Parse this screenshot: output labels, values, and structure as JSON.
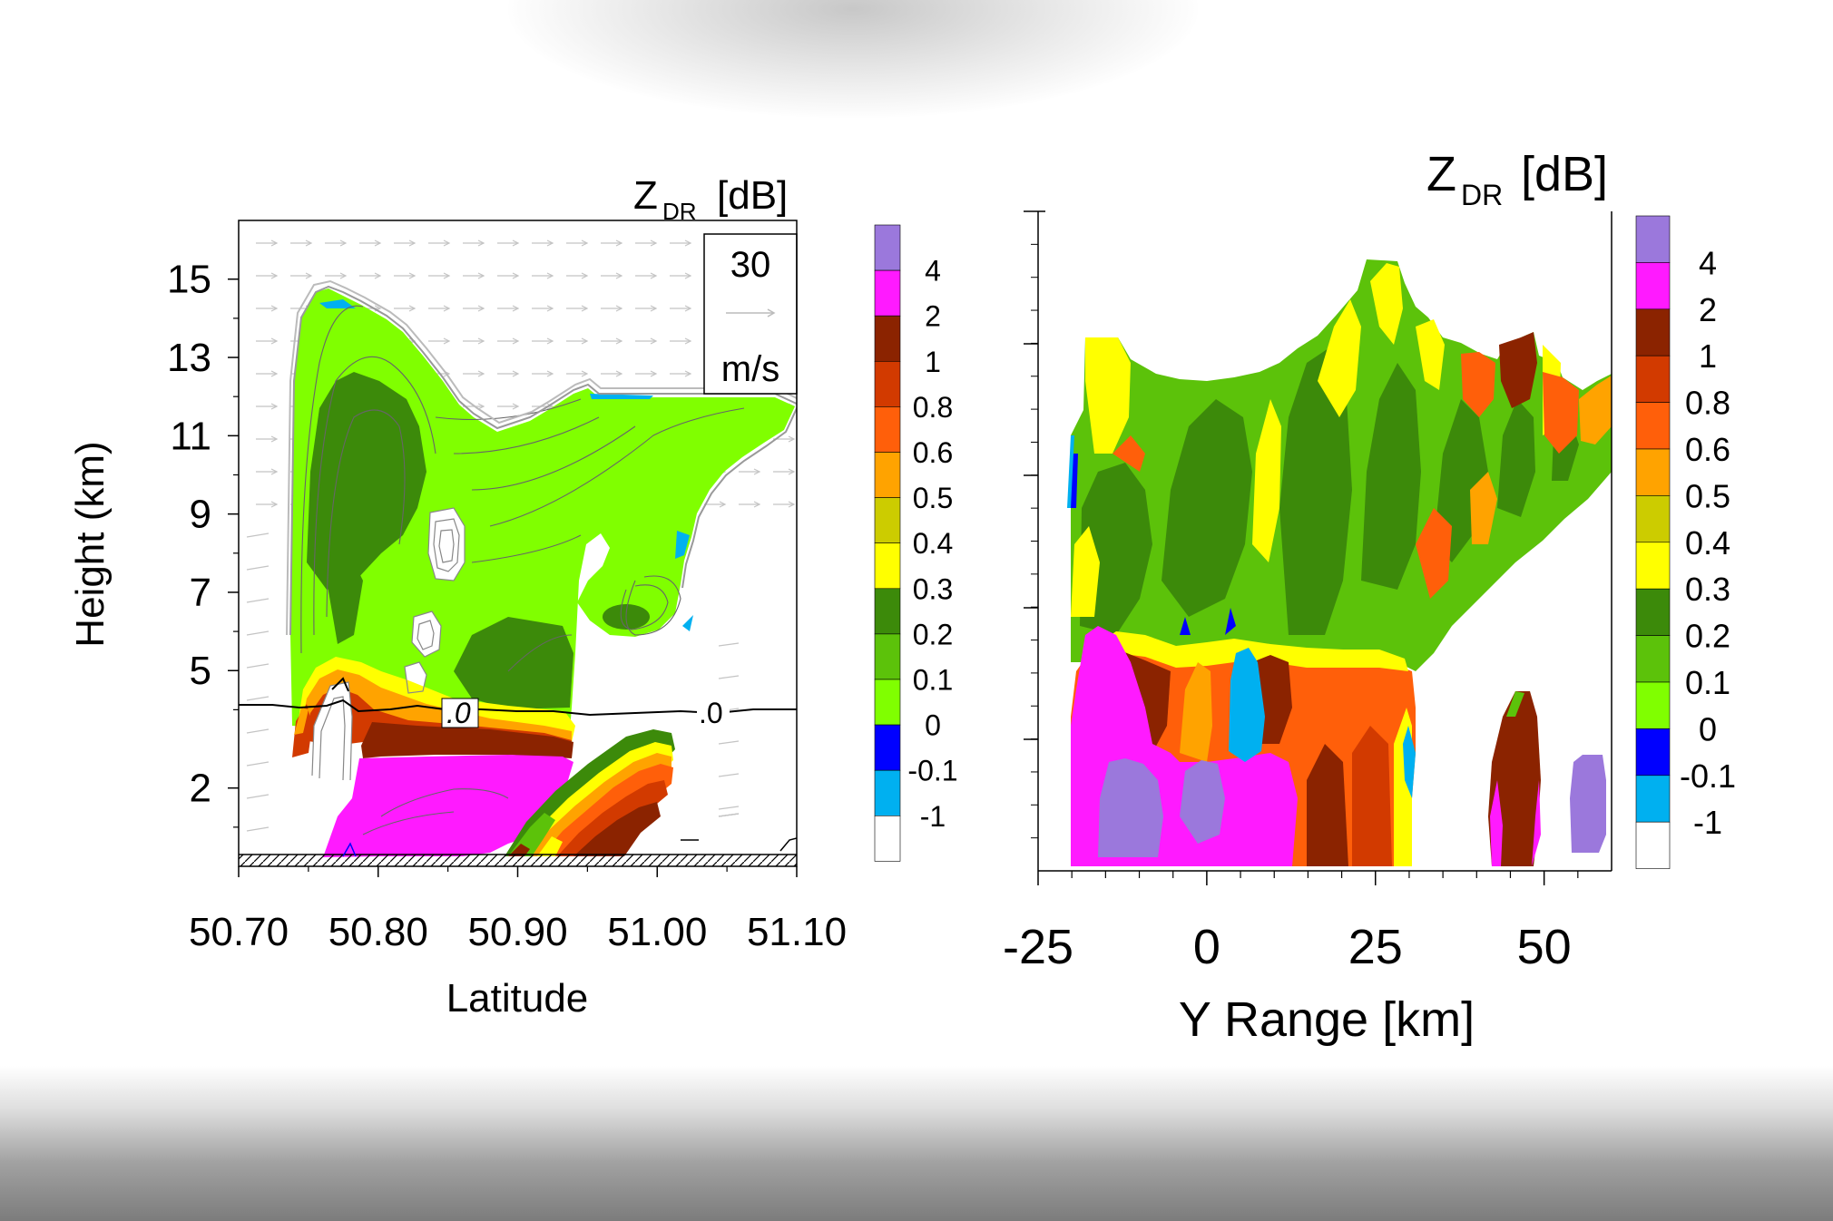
{
  "colorbar": {
    "labels": [
      "4",
      "2",
      "1",
      "0.8",
      "0.6",
      "0.5",
      "0.4",
      "0.3",
      "0.2",
      "0.1",
      "0",
      "-0.1",
      "-1"
    ],
    "colors": [
      "#9b78dc",
      "#ff1aff",
      "#8b2300",
      "#d23a00",
      "#ff5f0a",
      "#ffa300",
      "#cccc00",
      "#ffff00",
      "#3c8a0a",
      "#5cc20a",
      "#80ff00",
      "#0000ff",
      "#00b0f0",
      "#ffffff"
    ]
  },
  "chart_data": [
    {
      "type": "heatmap",
      "title": "Z_DR [dB]",
      "title_main": "Z",
      "title_sub": "DR",
      "title_unit": "[dB]",
      "xlabel": "Latitude",
      "ylabel": "Height (km)",
      "xlim": [
        50.7,
        51.1
      ],
      "ylim": [
        0,
        16.5
      ],
      "x_ticks": [
        "50.70",
        "50.80",
        "50.90",
        "51.00",
        "51.10"
      ],
      "y_ticks": [
        "15",
        "13",
        "11",
        "9",
        "7",
        "5",
        "2"
      ],
      "vector_reference": {
        "value": "30",
        "unit": "m/s"
      },
      "freezing_level_labels": [
        ".0",
        ".0"
      ],
      "freezing_level_height_km": 4.6,
      "regions": [
        {
          "class": "0.1",
          "x": [
            50.74,
            51.05
          ],
          "y": [
            5.0,
            14.5
          ]
        },
        {
          "class": "0.2",
          "x": [
            50.75,
            50.88
          ],
          "y": [
            5.5,
            13.0
          ]
        },
        {
          "class": "0.3",
          "x": [
            50.76,
            50.87
          ],
          "y": [
            4.6,
            6.2
          ]
        },
        {
          "class": "1",
          "x": [
            50.79,
            50.93
          ],
          "y": [
            2.8,
            3.6
          ]
        },
        {
          "class": "2",
          "x": [
            50.78,
            50.93
          ],
          "y": [
            0.3,
            2.8
          ]
        },
        {
          "class": "0.6",
          "x": [
            50.92,
            51.01
          ],
          "y": [
            0.2,
            3.0
          ]
        }
      ]
    },
    {
      "type": "heatmap",
      "title": "Z_DR [dB]",
      "title_main": "Z",
      "title_sub": "DR",
      "title_unit": "[dB]",
      "xlabel": "Y Range [km]",
      "xlim": [
        -25,
        60
      ],
      "x_ticks": [
        "-25",
        "0",
        "25",
        "50"
      ],
      "regions": [
        {
          "class": "0.1",
          "x": [
            -20,
            60
          ],
          "y_rel": [
            0.38,
            0.92
          ]
        },
        {
          "class": "0.2",
          "x": [
            -18,
            45
          ],
          "y_rel": [
            0.38,
            0.75
          ]
        },
        {
          "class": "0.3",
          "x": [
            -20,
            30
          ],
          "y_rel": [
            0.3,
            0.8
          ]
        },
        {
          "class": "0.6",
          "x": [
            -5,
            30
          ],
          "y_rel": [
            0.0,
            0.4
          ]
        },
        {
          "class": "1",
          "x": [
            15,
            28
          ],
          "y_rel": [
            0.0,
            0.35
          ]
        },
        {
          "class": "2",
          "x": [
            -20,
            13
          ],
          "y_rel": [
            0.0,
            0.37
          ]
        },
        {
          "class": "4",
          "x": [
            -15,
            10
          ],
          "y_rel": [
            0.0,
            0.18
          ]
        },
        {
          "class": "-1",
          "x": [
            2,
            9
          ],
          "y_rel": [
            0.2,
            0.36
          ]
        },
        {
          "class": "1",
          "x": [
            42,
            48
          ],
          "y_rel": [
            0.0,
            0.27
          ]
        },
        {
          "class": "4",
          "x": [
            54,
            59
          ],
          "y_rel": [
            0.02,
            0.17
          ]
        }
      ]
    }
  ]
}
